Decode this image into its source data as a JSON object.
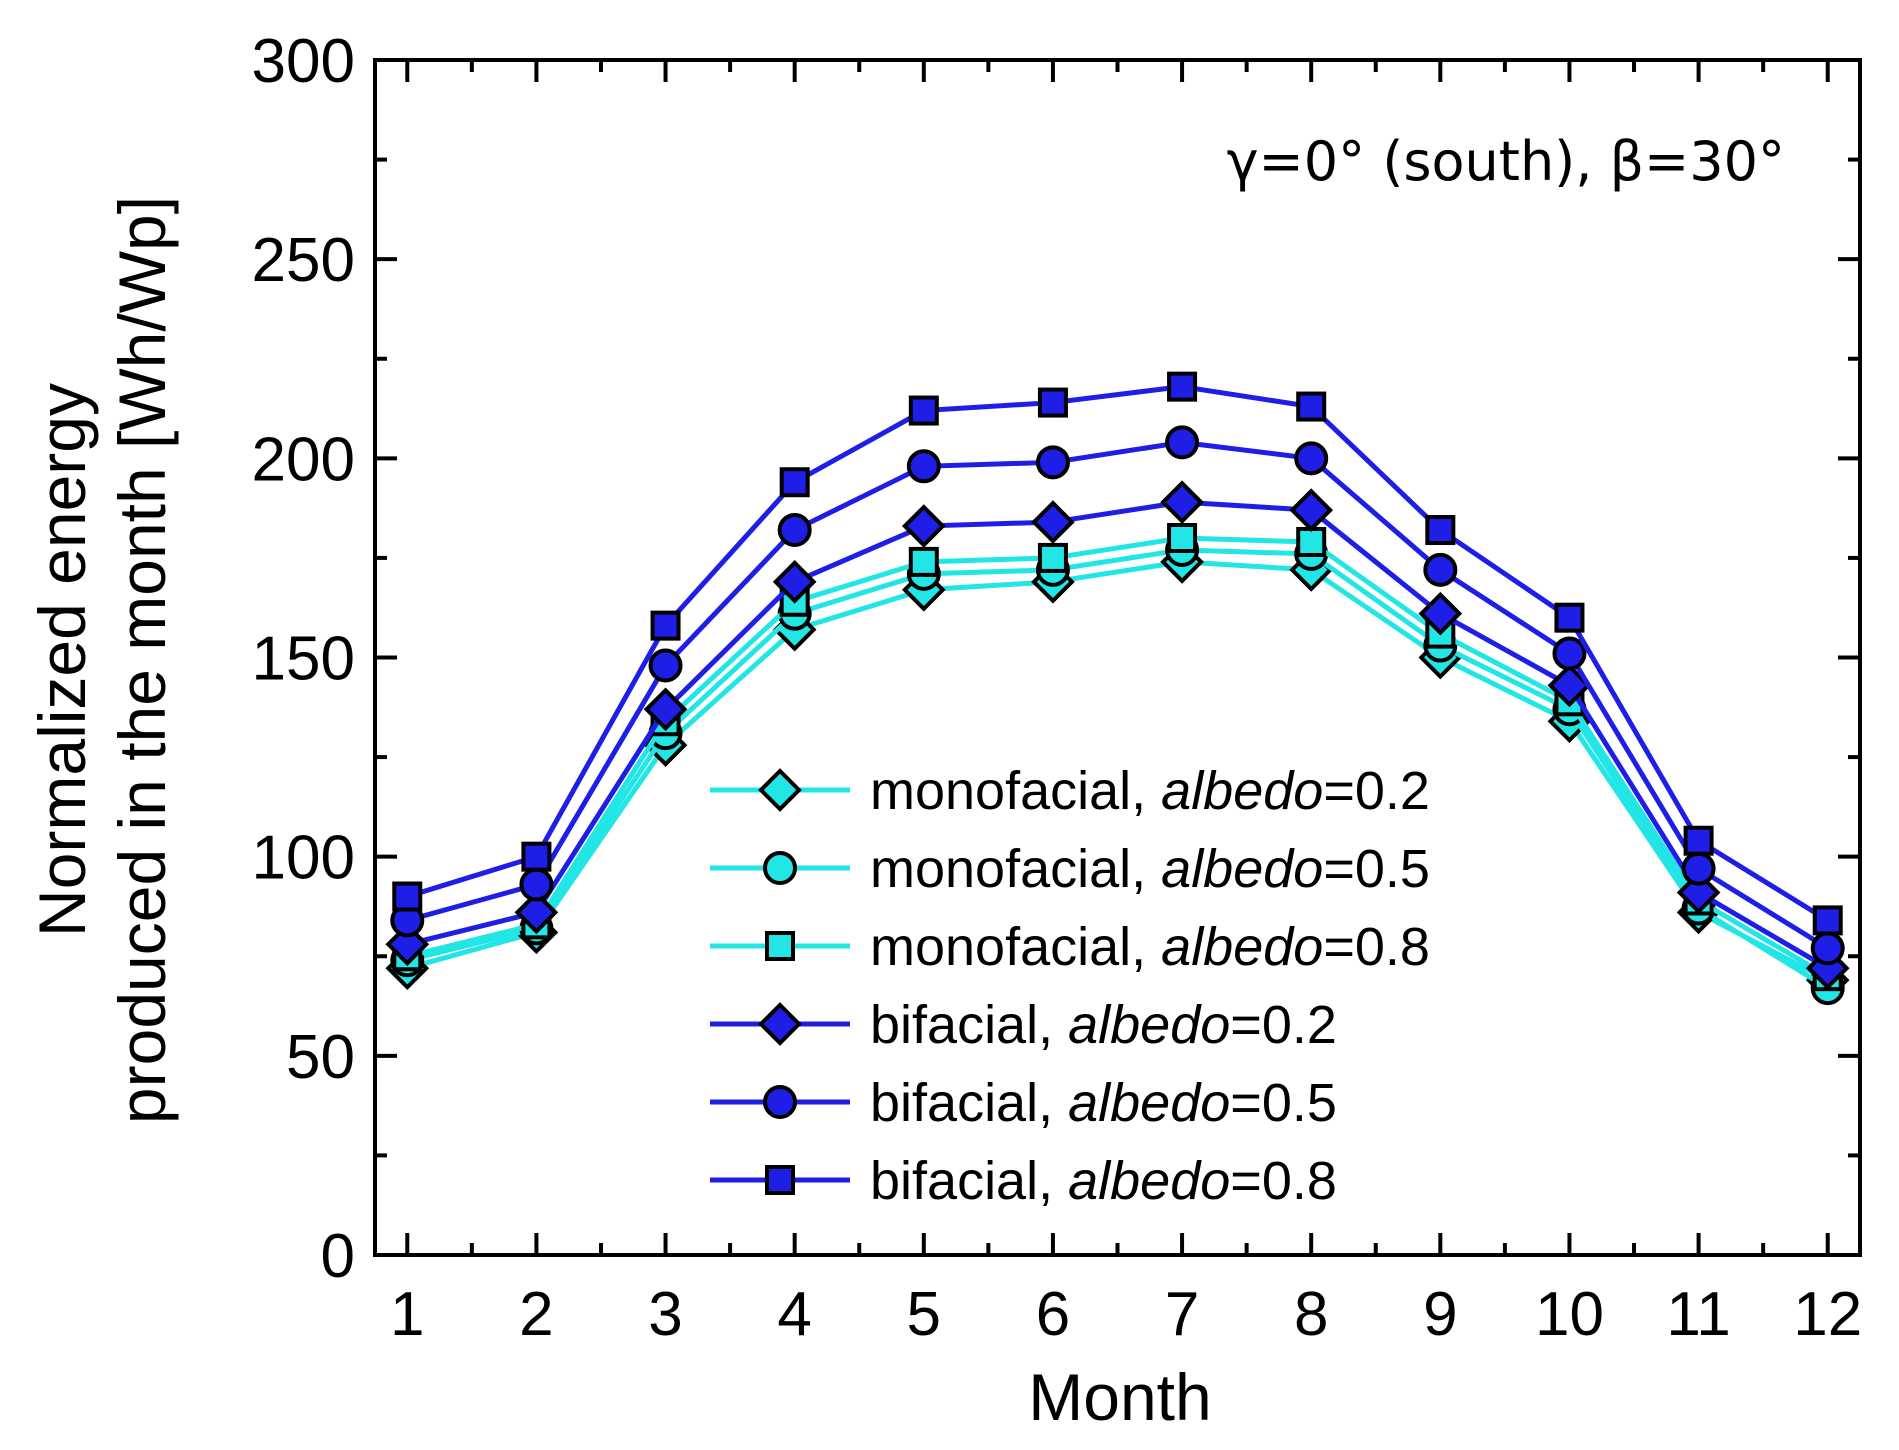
{
  "chart_data": {
    "type": "line",
    "xlabel": "Month",
    "ylabel_line1": "Normalized energy",
    "ylabel_line2": "produced in the month [Wh/Wp]",
    "annotation": "γ=0° (south), β=30°",
    "xlim": [
      0.75,
      12.25
    ],
    "ylim": [
      0,
      300
    ],
    "x_ticks": [
      1,
      2,
      3,
      4,
      5,
      6,
      7,
      8,
      9,
      10,
      11,
      12
    ],
    "y_ticks": [
      0,
      50,
      100,
      150,
      200,
      250,
      300
    ],
    "x": [
      1,
      2,
      3,
      4,
      5,
      6,
      7,
      8,
      9,
      10,
      11,
      12
    ],
    "legend_position": "center",
    "series": [
      {
        "name_prefix": "monofacial, ",
        "name_italic": "albedo",
        "name_suffix": "=0.2",
        "color": "#22e5e5",
        "marker": "diamond",
        "values": [
          72,
          81,
          128,
          157,
          167,
          169,
          174,
          172,
          150,
          134,
          86,
          69
        ]
      },
      {
        "name_prefix": "monofacial, ",
        "name_italic": "albedo",
        "name_suffix": "=0.5",
        "color": "#22e5e5",
        "marker": "circle",
        "values": [
          74,
          82,
          131,
          161,
          171,
          172,
          177,
          176,
          153,
          137,
          87,
          67
        ]
      },
      {
        "name_prefix": "monofacial, ",
        "name_italic": "albedo",
        "name_suffix": "=0.8",
        "color": "#22e5e5",
        "marker": "square",
        "values": [
          75,
          83,
          134,
          164,
          174,
          175,
          180,
          179,
          156,
          139,
          89,
          70
        ]
      },
      {
        "name_prefix": "bifacial, ",
        "name_italic": "albedo",
        "name_suffix": "=0.2",
        "color": "#1e1ee6",
        "marker": "diamond",
        "values": [
          78,
          86,
          137,
          169,
          183,
          184,
          189,
          187,
          161,
          143,
          91,
          72
        ]
      },
      {
        "name_prefix": "bifacial, ",
        "name_italic": "albedo",
        "name_suffix": "=0.5",
        "color": "#1e1ee6",
        "marker": "circle",
        "values": [
          84,
          93,
          148,
          182,
          198,
          199,
          204,
          200,
          172,
          151,
          97,
          77
        ]
      },
      {
        "name_prefix": "bifacial, ",
        "name_italic": "albedo",
        "name_suffix": "=0.8",
        "color": "#1e1ee6",
        "marker": "square",
        "values": [
          90,
          100,
          158,
          194,
          212,
          214,
          218,
          213,
          182,
          160,
          104,
          84
        ]
      }
    ]
  }
}
